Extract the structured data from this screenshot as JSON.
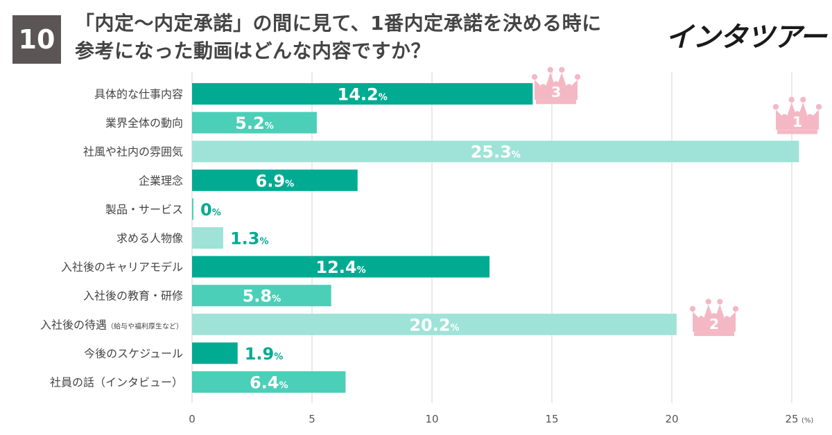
{
  "header": {
    "badge": "10",
    "title_line1": "「内定〜内定承諾」の間に見て、1番内定承諾を決める時に",
    "title_line2": "参考になった動画はどんな内容ですか？"
  },
  "logo": {
    "text": "インタツアー"
  },
  "colors": {
    "dark": "#00ab92",
    "medium": "#4ccfb8",
    "light": "#9fe3d8",
    "crown": "#f4b8c4",
    "crown_text": "#ffffff",
    "grid": "#d6d6d6",
    "label": "#444444"
  },
  "chart_data": {
    "type": "bar",
    "orientation": "horizontal",
    "unit": "(%)",
    "value_suffix": "%",
    "categories": [
      "具体的な仕事内容",
      "業界全体の動向",
      "社風や社内の雰囲気",
      "企業理念",
      "製品・サービス",
      "求める人物像",
      "入社後のキャリアモデル",
      "入社後の教育・研修",
      "入社後の待遇",
      "今後のスケジュール",
      "社員の話（インタビュー）"
    ],
    "category_notes": [
      "",
      "",
      "",
      "",
      "",
      "",
      "",
      "",
      "（給与や福利厚生など）",
      "",
      ""
    ],
    "values": [
      14.2,
      5.2,
      25.3,
      6.9,
      0,
      1.3,
      12.4,
      5.8,
      20.2,
      1.9,
      6.4
    ],
    "value_labels": [
      "14.2",
      "5.2",
      "25.3",
      "6.9",
      "0",
      "1.3",
      "12.4",
      "5.8",
      "20.2",
      "1.9",
      "6.4"
    ],
    "bar_shades": [
      "dark",
      "medium",
      "light",
      "dark",
      "medium",
      "light",
      "dark",
      "medium",
      "light",
      "dark",
      "medium"
    ],
    "xlim": [
      0,
      25
    ],
    "xticks": [
      0,
      5,
      10,
      15,
      20,
      25
    ],
    "rankings": [
      {
        "rank": "1",
        "category_index": 2
      },
      {
        "rank": "2",
        "category_index": 8
      },
      {
        "rank": "3",
        "category_index": 0
      }
    ]
  }
}
